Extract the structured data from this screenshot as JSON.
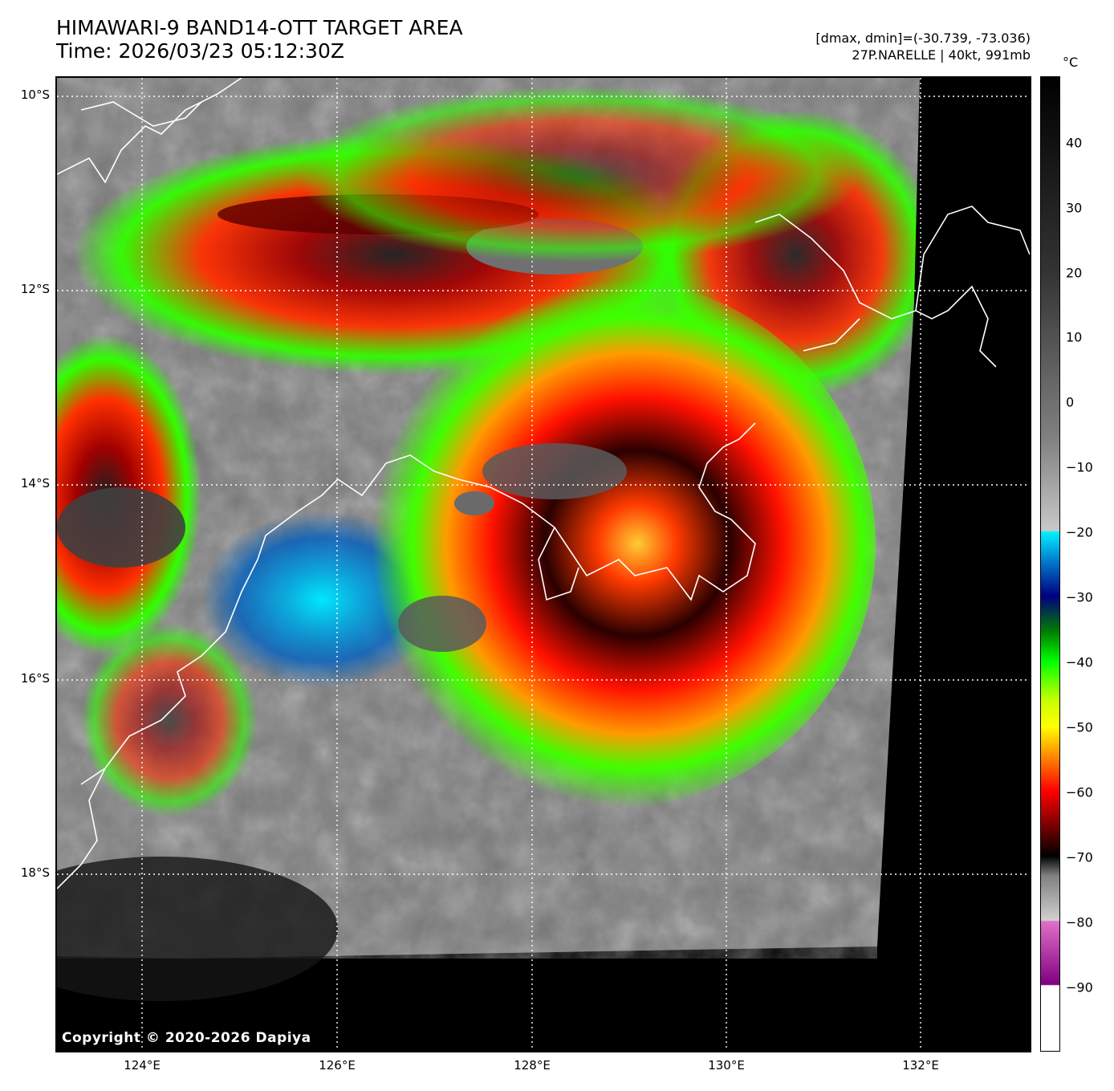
{
  "header": {
    "title": "HIMAWARI-9 BAND14-OTT TARGET AREA",
    "time": "Time: 2026/03/23 05:12:30Z",
    "dminmax": "[dmax, dmin]=(-30.739, -73.036)",
    "storm": "27P.NARELLE | 40kt, 991mb"
  },
  "map": {
    "lat_labels": [
      "10°S",
      "12°S",
      "14°S",
      "16°S",
      "18°S"
    ],
    "lon_labels": [
      "124°E",
      "126°E",
      "128°E",
      "130°E",
      "132°E"
    ],
    "copyright": "Copyright © 2020-2026 Dapiya",
    "colors": {
      "coast": "#ffffff",
      "grid": "#ffffff",
      "space": "#000000"
    }
  },
  "colorbar": {
    "unit": "°C",
    "ticks": [
      "40",
      "30",
      "20",
      "10",
      "0",
      "−10",
      "−20",
      "−30",
      "−40",
      "−50",
      "−60",
      "−70",
      "−80",
      "−90"
    ]
  }
}
